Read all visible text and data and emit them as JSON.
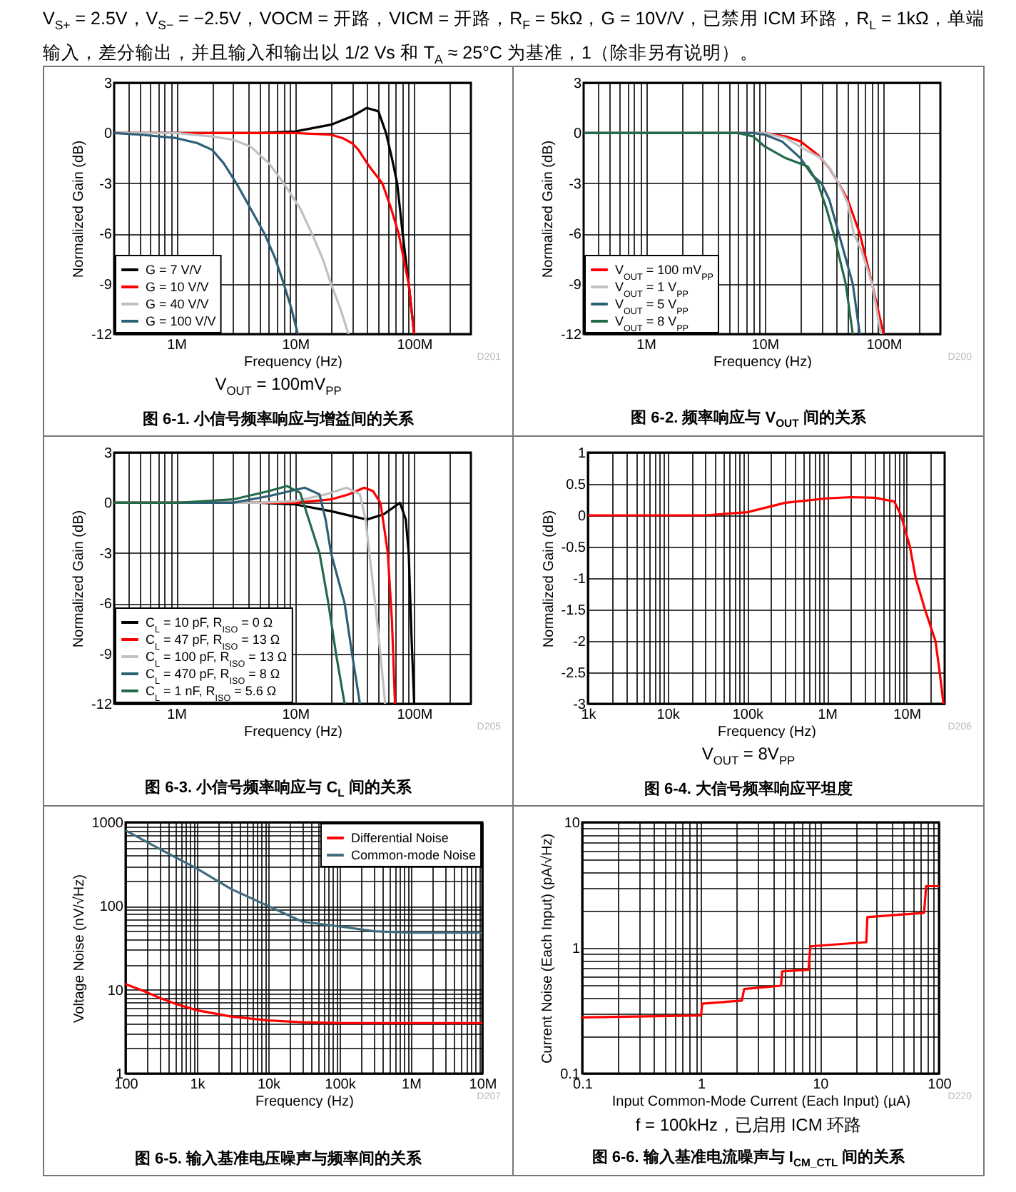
{
  "chart_data": [
    {
      "type": "line",
      "subtitle": "V$_{S+}$ = 2.5V，V$_{S−}$ = −2.5V，VOCM = 开路，VICM = 开路，R$_{F}$ = 5kΩ，G = 10V/V，已禁用 ICM 环路，R$_{L}$ = 1kΩ，单端输入，差分输出，并且输入和输出以 1/2 Vs 和 T$_{A}$ ≈ 25°C 为基准，1（除非另有说明）。",
      "title": "图 6-1. 小信号频率响应与增益间的关系",
      "xlabel": "Frequency (Hz)",
      "ylabel": "Normalized Gain (dB)",
      "annotations": [
        "V$_{OUT}$ = 100mV$_{PP}$",
        "D201"
      ],
      "log": "x",
      "grid": true,
      "legend": "bottom left",
      "xlim": [
        300000.0,
        300000000.0
      ],
      "ylim": [
        -12,
        3
      ],
      "yticks": [
        -12,
        -9,
        -6,
        -3,
        0,
        3
      ],
      "xticks": [
        {
          "value": 400000.0,
          "label": null
        },
        {
          "value": 500000.0,
          "label": null
        },
        {
          "value": 600000.0,
          "label": null
        },
        {
          "value": 700000.0,
          "label": null
        },
        {
          "value": 800000.0,
          "label": null
        },
        {
          "value": 900000.0,
          "label": null
        },
        {
          "value": 1000000.0,
          "label": "1M"
        },
        {
          "value": 2000000.0,
          "label": null
        },
        {
          "value": 3000000.0,
          "label": null
        },
        {
          "value": 4000000.0,
          "label": null
        },
        {
          "value": 5000000.0,
          "label": null
        },
        {
          "value": 6000000.0,
          "label": null
        },
        {
          "value": 7000000.0,
          "label": null
        },
        {
          "value": 8000000.0,
          "label": null
        },
        {
          "value": 9000000.0,
          "label": null
        },
        {
          "value": 10000000.0,
          "label": "10M"
        },
        {
          "value": 20000000.0,
          "label": null
        },
        {
          "value": 30000000.0,
          "label": null
        },
        {
          "value": 40000000.0,
          "label": null
        },
        {
          "value": 50000000.0,
          "label": null
        },
        {
          "value": 60000000.0,
          "label": null
        },
        {
          "value": 70000000.0,
          "label": null
        },
        {
          "value": 80000000.0,
          "label": null
        },
        {
          "value": 90000000.0,
          "label": null
        },
        {
          "value": 100000000.0,
          "label": "100M"
        },
        {
          "value": 200000000.0,
          "label": null
        }
      ],
      "series": [
        {
          "name": "G = 7 V/V",
          "color": "#000000",
          "x": [
            300000.0,
            1000000.0,
            3000000.0,
            5000000.0,
            10000000.0,
            20000000.0,
            30000000.0,
            40000000.0,
            50000000.0,
            58000000.0,
            65000000.0,
            72000000.0,
            80000000.0,
            90000000.0,
            100000000.0
          ],
          "values": [
            0,
            0,
            0,
            0,
            0.1,
            0.5,
            1,
            1.5,
            1.3,
            0,
            -1.5,
            -3,
            -6,
            -9,
            -12
          ]
        },
        {
          "name": "G = 10 V/V",
          "color": "#ff0000",
          "x": [
            300000.0,
            1000000.0,
            10000000.0,
            20000000.0,
            25000000.0,
            30000000.0,
            34000000.0,
            42000000.0,
            54000000.0,
            64000000.0,
            74000000.0,
            90000000.0,
            100000000.0
          ],
          "values": [
            0,
            0,
            0,
            -0.1,
            -0.3,
            -0.6,
            -1,
            -2,
            -3,
            -4.5,
            -6,
            -9,
            -12
          ]
        },
        {
          "name": "G = 40 V/V",
          "color": "#c0c0c0",
          "x": [
            300000.0,
            1000000.0,
            2000000.0,
            3000000.0,
            4200000.0,
            6000000.0,
            8000000.0,
            11000000.0,
            13800000.0,
            17000000.0,
            20000000.0,
            24000000.0,
            28000000.0
          ],
          "values": [
            0,
            0,
            -0.2,
            -0.4,
            -0.8,
            -1.8,
            -3,
            -4.5,
            -6,
            -7.5,
            -9,
            -10.5,
            -12
          ]
        },
        {
          "name": "G = 100 V/V",
          "color": "#2e5f78",
          "x": [
            300000.0,
            500000.0,
            1000000.0,
            1500000.0,
            2000000.0,
            2500000.0,
            3200000.0,
            4200000.0,
            5500000.0,
            6800000.0,
            8000000.0,
            9300000.0,
            10500000.0
          ],
          "values": [
            0,
            -0.1,
            -0.3,
            -0.6,
            -1,
            -1.8,
            -3,
            -4.5,
            -6,
            -7.5,
            -9,
            -10.5,
            -12
          ]
        }
      ]
    },
    {
      "type": "line",
      "title": "图 6-2. 频率响应与 V$_{OUT}$ 间的关系",
      "xlabel": "Frequency (Hz)",
      "ylabel": "Normalized Gain (dB)",
      "annotations": [
        "D200"
      ],
      "log": "x",
      "grid": true,
      "legend": "bottom left",
      "xlim": [
        300000.0,
        300000000.0
      ],
      "ylim": [
        -12,
        3
      ],
      "yticks": [
        -12,
        -9,
        -6,
        -3,
        0,
        3
      ],
      "xticks": [
        {
          "value": 400000.0,
          "label": null
        },
        {
          "value": 500000.0,
          "label": null
        },
        {
          "value": 600000.0,
          "label": null
        },
        {
          "value": 700000.0,
          "label": null
        },
        {
          "value": 800000.0,
          "label": null
        },
        {
          "value": 900000.0,
          "label": null
        },
        {
          "value": 1000000.0,
          "label": "1M"
        },
        {
          "value": 2000000.0,
          "label": null
        },
        {
          "value": 3000000.0,
          "label": null
        },
        {
          "value": 4000000.0,
          "label": null
        },
        {
          "value": 5000000.0,
          "label": null
        },
        {
          "value": 6000000.0,
          "label": null
        },
        {
          "value": 7000000.0,
          "label": null
        },
        {
          "value": 8000000.0,
          "label": null
        },
        {
          "value": 9000000.0,
          "label": null
        },
        {
          "value": 10000000.0,
          "label": "10M"
        },
        {
          "value": 20000000.0,
          "label": null
        },
        {
          "value": 30000000.0,
          "label": null
        },
        {
          "value": 40000000.0,
          "label": null
        },
        {
          "value": 50000000.0,
          "label": null
        },
        {
          "value": 60000000.0,
          "label": null
        },
        {
          "value": 70000000.0,
          "label": null
        },
        {
          "value": 80000000.0,
          "label": null
        },
        {
          "value": 90000000.0,
          "label": null
        },
        {
          "value": 100000000.0,
          "label": "100M"
        },
        {
          "value": 200000000.0,
          "label": null
        }
      ],
      "series": [
        {
          "name": "V$_{OUT}$ = 100 mV$_{PP}$",
          "color": "#ff0000",
          "x": [
            300000.0,
            1000000.0,
            10000000.0,
            15000000.0,
            20000000.0,
            28000000.0,
            35000000.0,
            42000000.0,
            50000000.0,
            63000000.0,
            80000000.0,
            100000000.0
          ],
          "values": [
            0,
            0,
            0,
            -0.2,
            -0.5,
            -1.3,
            -2.1,
            -3,
            -4,
            -6,
            -9,
            -12
          ]
        },
        {
          "name": "V$_{OUT}$ = 1 V$_{PP}$",
          "color": "#c0c0c0",
          "x": [
            300000.0,
            1000000.0,
            10000000.0,
            15000000.0,
            22000000.0,
            30000000.0,
            36000000.0,
            42000000.0,
            50000000.0,
            56000000.0,
            65000000.0,
            80000000.0,
            95000000.0
          ],
          "values": [
            0,
            0,
            0,
            -0.3,
            -1,
            -1.5,
            -2.2,
            -3,
            -4.2,
            -6,
            -7,
            -9,
            -12
          ]
        },
        {
          "name": "V$_{OUT}$ = 5 V$_{PP}$",
          "color": "#2e5f78",
          "x": [
            300000.0,
            1000000.0,
            8000000.0,
            10000000.0,
            14000000.0,
            20000000.0,
            25000000.0,
            30000000.0,
            35000000.0,
            42000000.0,
            55000000.0,
            63000000.0
          ],
          "values": [
            0,
            0,
            0,
            -0.1,
            -0.5,
            -1.5,
            -2.5,
            -3,
            -4,
            -6,
            -9,
            -12
          ]
        },
        {
          "name": "V$_{OUT}$ = 8 V$_{PP}$",
          "color": "#236b48",
          "x": [
            300000.0,
            1000000.0,
            6000000.0,
            8000000.0,
            10000000.0,
            15000000.0,
            23000000.0,
            28000000.0,
            33000000.0,
            38000000.0,
            48000000.0,
            55000000.0
          ],
          "values": [
            0,
            0,
            0,
            -0.2,
            -0.8,
            -1.5,
            -2,
            -3,
            -4.5,
            -6,
            -9,
            -12
          ]
        }
      ]
    },
    {
      "type": "line",
      "title": "图 6-3. 小信号频率响应与 C$_{L}$ 间的关系",
      "xlabel": "Frequency (Hz)",
      "ylabel": "Normalized Gain (dB)",
      "annotations": [
        "D205"
      ],
      "log": "x",
      "grid": true,
      "legend": "bottom left",
      "xlim": [
        300000.0,
        300000000.0
      ],
      "ylim": [
        -12,
        3
      ],
      "yticks": [
        -12,
        -9,
        -6,
        -3,
        0,
        3
      ],
      "xticks": [
        {
          "value": 400000.0,
          "label": null
        },
        {
          "value": 500000.0,
          "label": null
        },
        {
          "value": 600000.0,
          "label": null
        },
        {
          "value": 700000.0,
          "label": null
        },
        {
          "value": 800000.0,
          "label": null
        },
        {
          "value": 900000.0,
          "label": null
        },
        {
          "value": 1000000.0,
          "label": "1M"
        },
        {
          "value": 2000000.0,
          "label": null
        },
        {
          "value": 3000000.0,
          "label": null
        },
        {
          "value": 4000000.0,
          "label": null
        },
        {
          "value": 5000000.0,
          "label": null
        },
        {
          "value": 6000000.0,
          "label": null
        },
        {
          "value": 7000000.0,
          "label": null
        },
        {
          "value": 8000000.0,
          "label": null
        },
        {
          "value": 9000000.0,
          "label": null
        },
        {
          "value": 10000000.0,
          "label": "10M"
        },
        {
          "value": 20000000.0,
          "label": null
        },
        {
          "value": 30000000.0,
          "label": null
        },
        {
          "value": 40000000.0,
          "label": null
        },
        {
          "value": 50000000.0,
          "label": null
        },
        {
          "value": 60000000.0,
          "label": null
        },
        {
          "value": 70000000.0,
          "label": null
        },
        {
          "value": 80000000.0,
          "label": null
        },
        {
          "value": 90000000.0,
          "label": null
        },
        {
          "value": 100000000.0,
          "label": "100M"
        },
        {
          "value": 200000000.0,
          "label": null
        }
      ],
      "series": [
        {
          "name": "C$_{L}$ = 10 pF, R$_{ISO}$ = 0 Ω",
          "color": "#000000",
          "x": [
            300000.0,
            1000000.0,
            5000000.0,
            10000000.0,
            20000000.0,
            30000000.0,
            40000000.0,
            55000000.0,
            76000000.0,
            85000000.0,
            90000000.0,
            95000000.0,
            100000000.0
          ],
          "values": [
            0,
            0,
            0,
            -0.1,
            -0.5,
            -0.8,
            -1,
            -0.7,
            0,
            -1,
            -3,
            -8,
            -12
          ]
        },
        {
          "name": "C$_{L}$ = 47 pF, R$_{ISO}$ = 13 Ω",
          "color": "#ff0000",
          "x": [
            300000.0,
            1000000.0,
            10000000.0,
            20000000.0,
            28000000.0,
            38000000.0,
            45000000.0,
            52000000.0,
            56000000.0,
            60000000.0,
            65000000.0,
            69000000.0
          ],
          "values": [
            0,
            0,
            0,
            0.2,
            0.5,
            0.9,
            0.7,
            0,
            -1.5,
            -3,
            -7,
            -12
          ]
        },
        {
          "name": "C$_{L}$ = 100 pF, R$_{ISO}$ = 13 Ω",
          "color": "#c0c0c0",
          "x": [
            300000.0,
            1000000.0,
            5000000.0,
            10000000.0,
            18000000.0,
            27000000.0,
            35000000.0,
            39000000.0,
            42000000.0,
            47000000.0,
            52000000.0,
            57000000.0
          ],
          "values": [
            0,
            0,
            0,
            0.1,
            0.5,
            0.9,
            0.5,
            -1,
            -3,
            -6,
            -9,
            -12
          ]
        },
        {
          "name": "C$_{L}$ = 470 pF, R$_{ISO}$ = 8 Ω",
          "color": "#2e5f78",
          "x": [
            300000.0,
            1000000.0,
            3000000.0,
            6000000.0,
            12000000.0,
            16000000.0,
            18000000.0,
            20000000.0,
            26000000.0,
            30000000.0,
            35000000.0
          ],
          "values": [
            0,
            0,
            0,
            0.4,
            0.9,
            0.5,
            -1,
            -3,
            -6,
            -9,
            -12
          ]
        },
        {
          "name": "C$_{L}$ = 1 nF, R$_{ISO}$ = 5.6 Ω",
          "color": "#236b48",
          "x": [
            300000.0,
            1000000.0,
            3000000.0,
            6000000.0,
            8500000.0,
            11000000.0,
            13000000.0,
            16000000.0,
            19000000.0,
            22000000.0,
            26000000.0
          ],
          "values": [
            0,
            0,
            0.2,
            0.7,
            1,
            0.6,
            -1,
            -3,
            -6,
            -9,
            -12
          ]
        }
      ]
    },
    {
      "type": "line",
      "title": "图 6-4. 大信号频率响应平坦度",
      "xlabel": "Frequency (Hz)",
      "ylabel": "Normalized Gain (dB)",
      "annotations": [
        "V$_{OUT}$ = 8V$_{PP}$",
        "D206"
      ],
      "log": "x",
      "grid": true,
      "xlim": [
        1000,
        30000000.0
      ],
      "ylim": [
        -3,
        1
      ],
      "yticks": [
        -3,
        -2.5,
        -2,
        -1.5,
        -1,
        -0.5,
        0,
        0.5,
        1
      ],
      "xticks": [
        {
          "value": 1000,
          "label": "1k"
        },
        {
          "value": 2000,
          "label": null
        },
        {
          "value": 3000,
          "label": null
        },
        {
          "value": 4000,
          "label": null
        },
        {
          "value": 5000,
          "label": null
        },
        {
          "value": 6000,
          "label": null
        },
        {
          "value": 7000,
          "label": null
        },
        {
          "value": 8000,
          "label": null
        },
        {
          "value": 9000,
          "label": null
        },
        {
          "value": 10000.0,
          "label": "10k"
        },
        {
          "value": 20000.0,
          "label": null
        },
        {
          "value": 30000.0,
          "label": null
        },
        {
          "value": 40000.0,
          "label": null
        },
        {
          "value": 50000.0,
          "label": null
        },
        {
          "value": 60000.0,
          "label": null
        },
        {
          "value": 70000.0,
          "label": null
        },
        {
          "value": 80000.0,
          "label": null
        },
        {
          "value": 90000.0,
          "label": null
        },
        {
          "value": 100000.0,
          "label": "100k"
        },
        {
          "value": 200000.0,
          "label": null
        },
        {
          "value": 300000.0,
          "label": null
        },
        {
          "value": 400000.0,
          "label": null
        },
        {
          "value": 500000.0,
          "label": null
        },
        {
          "value": 600000.0,
          "label": null
        },
        {
          "value": 700000.0,
          "label": null
        },
        {
          "value": 800000.0,
          "label": null
        },
        {
          "value": 900000.0,
          "label": null
        },
        {
          "value": 1000000.0,
          "label": "1M"
        },
        {
          "value": 2000000.0,
          "label": null
        },
        {
          "value": 3000000.0,
          "label": null
        },
        {
          "value": 4000000.0,
          "label": null
        },
        {
          "value": 5000000.0,
          "label": null
        },
        {
          "value": 6000000.0,
          "label": null
        },
        {
          "value": 7000000.0,
          "label": null
        },
        {
          "value": 8000000.0,
          "label": null
        },
        {
          "value": 9000000.0,
          "label": null
        },
        {
          "value": 10000000.0,
          "label": "10M"
        },
        {
          "value": 20000000.0,
          "label": null
        }
      ],
      "series": [
        {
          "color": "#ff0000",
          "x": [
            1000,
            3000,
            10000.0,
            30000.0,
            100000.0,
            300000.0,
            1000000.0,
            2000000.0,
            4000000.0,
            7000000.0,
            8500000.0,
            11000000.0,
            13000000.0,
            17000000.0,
            23000000.0,
            26000000.0,
            29000000.0
          ],
          "values": [
            0,
            0,
            0,
            0,
            0.05,
            0.2,
            0.27,
            0.29,
            0.28,
            0.22,
            0,
            -0.5,
            -1,
            -1.5,
            -2,
            -2.5,
            -3
          ]
        }
      ]
    },
    {
      "type": "line",
      "title": "图 6-5. 输入基准电压噪声与频率间的关系",
      "xlabel": "Frequency (Hz)",
      "ylabel": "Voltage Noise (nV/√Hz)",
      "annotations": [
        "D207"
      ],
      "log": "xy",
      "grid": true,
      "legend": "top right",
      "xlim": [
        100,
        10000000.0
      ],
      "ylim": [
        1,
        1000
      ],
      "xticks": [
        100,
        {
          "value": 200,
          "label": null
        },
        {
          "value": 300,
          "label": null
        },
        {
          "value": 400,
          "label": null
        },
        {
          "value": 500,
          "label": null
        },
        {
          "value": 600,
          "label": null
        },
        {
          "value": 700,
          "label": null
        },
        {
          "value": 800,
          "label": null
        },
        {
          "value": 900,
          "label": null
        },
        {
          "value": 1000,
          "label": "1k"
        },
        {
          "value": 2000,
          "label": null
        },
        {
          "value": 3000,
          "label": null
        },
        {
          "value": 4000,
          "label": null
        },
        {
          "value": 5000,
          "label": null
        },
        {
          "value": 6000,
          "label": null
        },
        {
          "value": 7000,
          "label": null
        },
        {
          "value": 8000,
          "label": null
        },
        {
          "value": 9000,
          "label": null
        },
        {
          "value": 10000.0,
          "label": "10k"
        },
        {
          "value": 20000.0,
          "label": null
        },
        {
          "value": 30000.0,
          "label": null
        },
        {
          "value": 40000.0,
          "label": null
        },
        {
          "value": 50000.0,
          "label": null
        },
        {
          "value": 60000.0,
          "label": null
        },
        {
          "value": 70000.0,
          "label": null
        },
        {
          "value": 80000.0,
          "label": null
        },
        {
          "value": 90000.0,
          "label": null
        },
        {
          "value": 100000.0,
          "label": "100k"
        },
        {
          "value": 200000.0,
          "label": null
        },
        {
          "value": 300000.0,
          "label": null
        },
        {
          "value": 400000.0,
          "label": null
        },
        {
          "value": 500000.0,
          "label": null
        },
        {
          "value": 600000.0,
          "label": null
        },
        {
          "value": 700000.0,
          "label": null
        },
        {
          "value": 800000.0,
          "label": null
        },
        {
          "value": 900000.0,
          "label": null
        },
        {
          "value": 1000000.0,
          "label": "1M"
        },
        {
          "value": 2000000.0,
          "label": null
        },
        {
          "value": 3000000.0,
          "label": null
        },
        {
          "value": 4000000.0,
          "label": null
        },
        {
          "value": 5000000.0,
          "label": null
        },
        {
          "value": 6000000.0,
          "label": null
        },
        {
          "value": 7000000.0,
          "label": null
        },
        {
          "value": 8000000.0,
          "label": null
        },
        {
          "value": 9000000.0,
          "label": null
        },
        {
          "value": 10000000.0,
          "label": "10M"
        }
      ],
      "yticks": [
        1,
        {
          "value": 2,
          "label": null
        },
        {
          "value": 3,
          "label": null
        },
        {
          "value": 4,
          "label": null
        },
        {
          "value": 5,
          "label": null
        },
        {
          "value": 6,
          "label": null
        },
        {
          "value": 7,
          "label": null
        },
        {
          "value": 8,
          "label": null
        },
        {
          "value": 9,
          "label": null
        },
        10,
        {
          "value": 20,
          "label": null
        },
        {
          "value": 30,
          "label": null
        },
        {
          "value": 40,
          "label": null
        },
        {
          "value": 50,
          "label": null
        },
        {
          "value": 60,
          "label": null
        },
        {
          "value": 70,
          "label": null
        },
        {
          "value": 80,
          "label": null
        },
        {
          "value": 90,
          "label": null
        },
        100,
        {
          "value": 200,
          "label": null
        },
        {
          "value": 300,
          "label": null
        },
        {
          "value": 400,
          "label": null
        },
        {
          "value": 500,
          "label": null
        },
        {
          "value": 600,
          "label": null
        },
        {
          "value": 700,
          "label": null
        },
        {
          "value": 800,
          "label": null
        },
        {
          "value": 900,
          "label": null
        },
        1000
      ],
      "series": [
        {
          "name": "Differential Noise",
          "color": "#ff0000",
          "x": [
            100,
            200,
            300,
            500,
            1000,
            3000,
            10000.0,
            30000.0,
            100000.0,
            1000000.0,
            10000000.0
          ],
          "values": [
            11.7,
            9.3,
            8,
            6.8,
            5.7,
            4.8,
            4.3,
            4.1,
            4,
            4,
            4
          ]
        },
        {
          "name": "Common-mode Noise",
          "color": "#3e6d80",
          "x": [
            100,
            300,
            1000,
            3000,
            10000.0,
            30000.0,
            100000.0,
            300000.0,
            1000000.0,
            10000000.0
          ],
          "values": [
            800,
            480,
            280,
            160,
            100,
            65,
            57,
            50,
            48,
            48
          ]
        }
      ]
    },
    {
      "type": "line",
      "title": "图 6-6. 输入基准电流噪声与 I$_{CM_CTL}$ 间的关系",
      "xlabel": "Input Common-Mode Current (Each Input) (µA)",
      "ylabel": "Current Noise (Each Input) (pA/√Hz)",
      "annotations": [
        "f = 100kHz，已启用 ICM 环路",
        "D220"
      ],
      "log": "xy",
      "grid": true,
      "xlim": [
        0.1,
        100
      ],
      "ylim": [
        0.1,
        10
      ],
      "xticks": [
        0.1,
        {
          "value": 0.2,
          "label": null
        },
        {
          "value": 0.3,
          "label": null
        },
        {
          "value": 0.4,
          "label": null
        },
        {
          "value": 0.5,
          "label": null
        },
        {
          "value": 0.6,
          "label": null
        },
        {
          "value": 0.7,
          "label": null
        },
        {
          "value": 0.8,
          "label": null
        },
        {
          "value": 0.9,
          "label": null
        },
        1,
        {
          "value": 2,
          "label": null
        },
        {
          "value": 3,
          "label": null
        },
        {
          "value": 4,
          "label": null
        },
        {
          "value": 5,
          "label": null
        },
        {
          "value": 6,
          "label": null
        },
        {
          "value": 7,
          "label": null
        },
        {
          "value": 8,
          "label": null
        },
        {
          "value": 9,
          "label": null
        },
        10,
        {
          "value": 20,
          "label": null
        },
        {
          "value": 30,
          "label": null
        },
        {
          "value": 40,
          "label": null
        },
        {
          "value": 50,
          "label": null
        },
        {
          "value": 60,
          "label": null
        },
        {
          "value": 70,
          "label": null
        },
        {
          "value": 80,
          "label": null
        },
        {
          "value": 90,
          "label": null
        },
        100
      ],
      "yticks": [
        0.1,
        {
          "value": 0.2,
          "label": null
        },
        {
          "value": 0.3,
          "label": null
        },
        {
          "value": 0.4,
          "label": null
        },
        {
          "value": 0.5,
          "label": null
        },
        {
          "value": 0.6,
          "label": null
        },
        {
          "value": 0.7,
          "label": null
        },
        {
          "value": 0.8,
          "label": null
        },
        {
          "value": 0.9,
          "label": null
        },
        1,
        {
          "value": 2,
          "label": null
        },
        {
          "value": 3,
          "label": null
        },
        {
          "value": 4,
          "label": null
        },
        {
          "value": 5,
          "label": null
        },
        {
          "value": 6,
          "label": null
        },
        {
          "value": 7,
          "label": null
        },
        {
          "value": 8,
          "label": null
        },
        {
          "value": 9,
          "label": null
        },
        10
      ],
      "series": [
        {
          "color": "#ff0000",
          "x": [
            0.1,
            1,
            1.02,
            2.2,
            2.3,
            4.7,
            4.8,
            8,
            8.3,
            24.5,
            25,
            75,
            78,
            100
          ],
          "values": [
            0.28,
            0.29,
            0.36,
            0.38,
            0.47,
            0.5,
            0.65,
            0.67,
            1.03,
            1.11,
            1.76,
            1.9,
            3.1,
            3.1
          ]
        }
      ]
    }
  ]
}
